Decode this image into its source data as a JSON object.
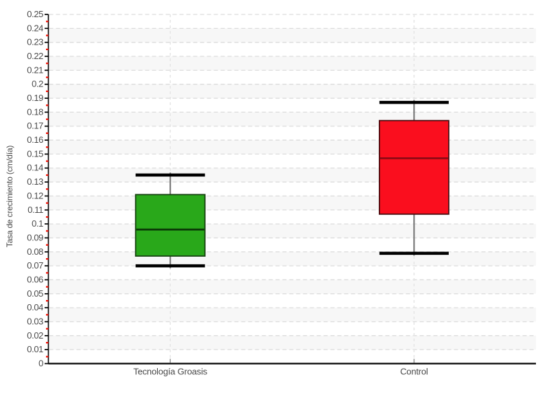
{
  "chart_data": {
    "type": "boxplot",
    "title": "",
    "xlabel": "",
    "ylabel": "Tasa de crecimiento (cm/día)",
    "ylim": [
      0,
      0.25
    ],
    "ytick_step": 0.01,
    "ytick_labels": [
      "0",
      "0.01",
      "0.02",
      "0.03",
      "0.04",
      "0.05",
      "0.06",
      "0.07",
      "0.08",
      "0.09",
      "0.1",
      "0.11",
      "0.12",
      "0.13",
      "0.14",
      "0.15",
      "0.16",
      "0.17",
      "0.18",
      "0.19",
      "0.2",
      "0.21",
      "0.22",
      "0.23",
      "0.24",
      "0.25"
    ],
    "minor_ticks_between_majors": 1,
    "categories": [
      "Tecnología Groasis",
      "Control"
    ],
    "series": [
      {
        "name": "Tecnología Groasis",
        "min": 0.07,
        "q1": 0.077,
        "median": 0.096,
        "q3": 0.121,
        "max": 0.135,
        "fill": "#29a81a",
        "border": "#164010",
        "median_color": "#0a3506"
      },
      {
        "name": "Control",
        "min": 0.079,
        "q1": 0.107,
        "median": 0.147,
        "q3": 0.174,
        "max": 0.187,
        "fill": "#fa0e1e",
        "border": "#4a0c10",
        "median_color": "#8e0a15"
      }
    ],
    "legend": "none",
    "grid": "horizontal dashed lines each 0.01, vertical dashed line at each category, alternating shaded bands",
    "style": {
      "background": "#ffffff",
      "band_fill": "#f7f7f7",
      "grid_color": "#dcdcdc",
      "category_grid_color": "#e5e5e5",
      "axis_color": "#000000",
      "major_tick_color": "#000000",
      "minor_tick_color": "#f20c00",
      "category_tick_color": "#9a9a9a",
      "whisker_color": "#7a7a7a",
      "cap_color": "#000000",
      "label_color": "#4a4a4a"
    }
  }
}
